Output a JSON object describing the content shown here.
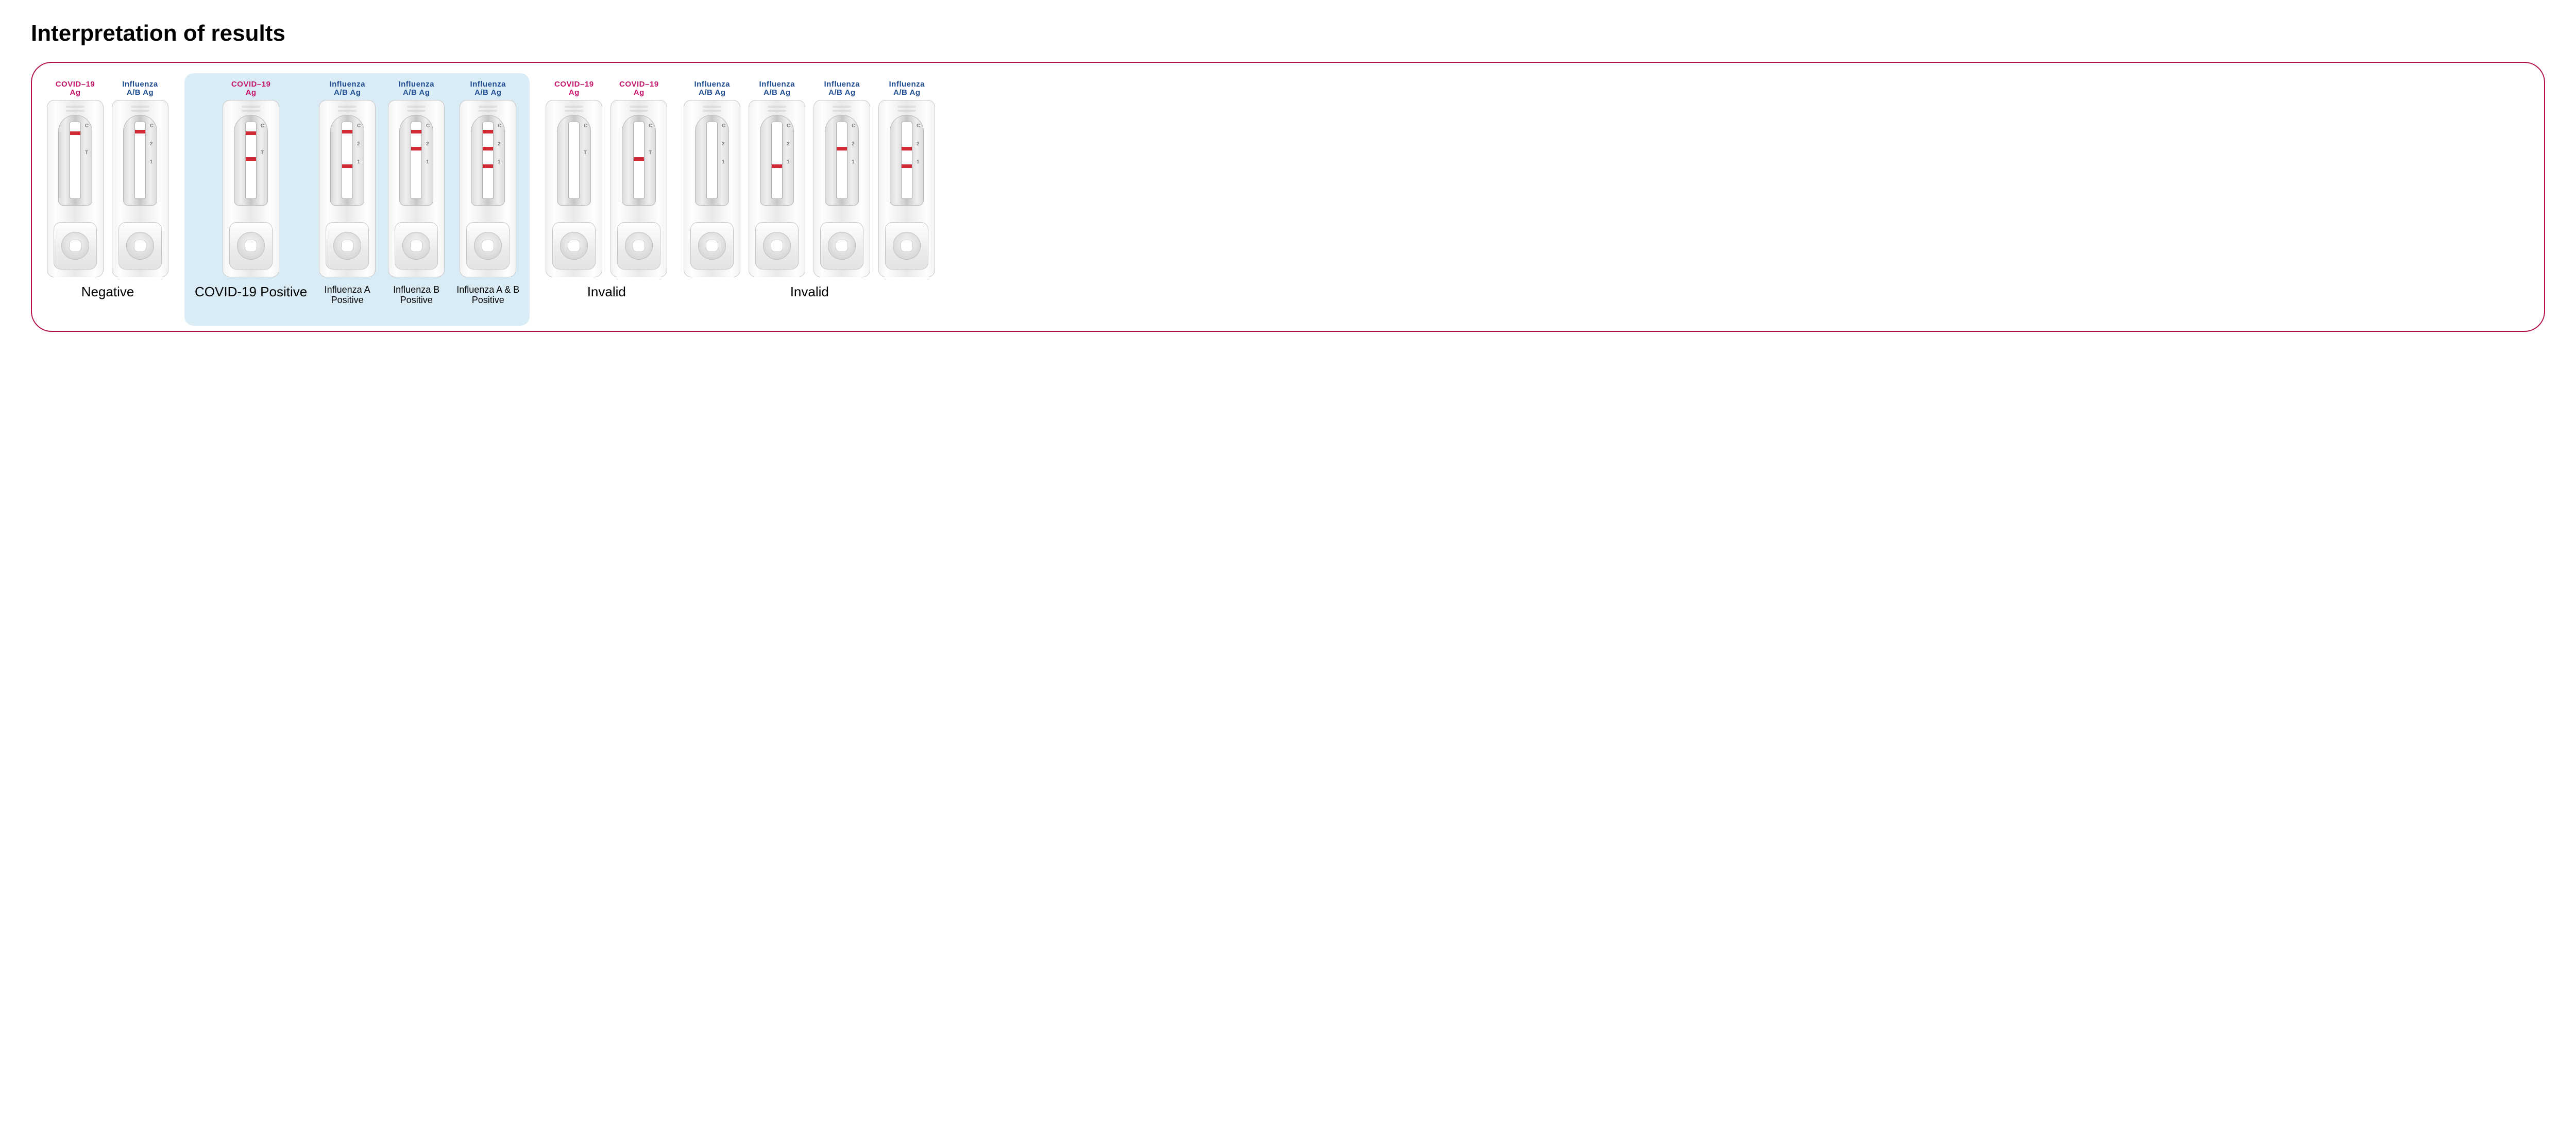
{
  "heading": "Interpretation of results",
  "frame_border_color": "#b3104a",
  "highlight_bg": "#d9ecf6",
  "colors": {
    "covid_title": "#c4156b",
    "flu_title": "#1f4b8f",
    "band": "#d12a34",
    "cassette_border": "#c7c7c7"
  },
  "marker_sets": {
    "covid": [
      "C",
      "T"
    ],
    "flu": [
      "C",
      "2",
      "1"
    ]
  },
  "band_positions": {
    "C": 18,
    "T": 68,
    "flu_C": 15,
    "flu_2": 48,
    "flu_1": 82
  },
  "cassette_titles": {
    "covid": {
      "line1": "COVID–19",
      "line2": "Ag"
    },
    "flu": {
      "line1": "Influenza",
      "line2": "A/B Ag"
    }
  },
  "groups": [
    {
      "id": "negative",
      "highlight": false,
      "label": "Negative",
      "label_size": "large",
      "cassettes": [
        {
          "type": "covid",
          "bands": [
            "C"
          ]
        },
        {
          "type": "flu",
          "bands": [
            "flu_C"
          ]
        }
      ]
    },
    {
      "id": "positive",
      "highlight": true,
      "subgroups": [
        {
          "label": "COVID-19 Positive",
          "label_size": "large",
          "cassettes": [
            {
              "type": "covid",
              "bands": [
                "C",
                "T"
              ]
            }
          ]
        },
        {
          "label": "Influenza A\nPositive",
          "label_size": "small",
          "cassettes": [
            {
              "type": "flu",
              "bands": [
                "flu_C",
                "flu_1"
              ]
            }
          ]
        },
        {
          "label": "Influenza B\nPositive",
          "label_size": "small",
          "cassettes": [
            {
              "type": "flu",
              "bands": [
                "flu_C",
                "flu_2"
              ]
            }
          ]
        },
        {
          "label": "Influenza A & B\nPositive",
          "label_size": "small",
          "cassettes": [
            {
              "type": "flu",
              "bands": [
                "flu_C",
                "flu_2",
                "flu_1"
              ]
            }
          ]
        }
      ]
    },
    {
      "id": "invalid_covid",
      "highlight": false,
      "label": "Invalid",
      "label_size": "large",
      "cassettes": [
        {
          "type": "covid",
          "bands": []
        },
        {
          "type": "covid",
          "bands": [
            "T"
          ]
        }
      ]
    },
    {
      "id": "invalid_flu",
      "highlight": false,
      "label": "Invalid",
      "label_size": "large",
      "cassettes": [
        {
          "type": "flu",
          "bands": []
        },
        {
          "type": "flu",
          "bands": [
            "flu_1"
          ]
        },
        {
          "type": "flu",
          "bands": [
            "flu_2"
          ]
        },
        {
          "type": "flu",
          "bands": [
            "flu_2",
            "flu_1"
          ]
        }
      ]
    }
  ]
}
